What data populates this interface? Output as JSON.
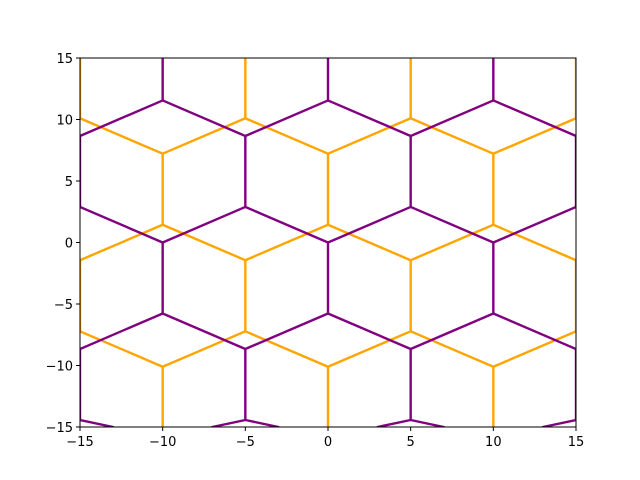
{
  "chart_data": {
    "type": "line",
    "title": "",
    "xlabel": "",
    "ylabel": "",
    "xlim": [
      -15,
      15
    ],
    "ylim": [
      -15,
      15
    ],
    "grid": false,
    "legend": "none",
    "x_ticks": [
      -15,
      -10,
      -5,
      0,
      5,
      10,
      15
    ],
    "y_ticks": [
      -15,
      -10,
      -5,
      0,
      5,
      10,
      15
    ],
    "x_tick_labels": [
      "−15",
      "−10",
      "−5",
      "0",
      "5",
      "10",
      "15"
    ],
    "y_tick_labels": [
      "−15",
      "−10",
      "−5",
      "0",
      "5",
      "10",
      "15"
    ],
    "series": [
      {
        "color": "#ffa500",
        "segments": [
          [
            [
              -15,
              -1.44
            ],
            [
              -10,
              1.44
            ]
          ],
          [
            [
              -10,
              1.44
            ],
            [
              -5,
              -1.44
            ]
          ],
          [
            [
              -5,
              -1.44
            ],
            [
              0,
              1.44
            ]
          ],
          [
            [
              0,
              1.44
            ],
            [
              5,
              -1.44
            ]
          ],
          [
            [
              5,
              -1.44
            ],
            [
              10,
              1.44
            ]
          ],
          [
            [
              10,
              1.44
            ],
            [
              15,
              -1.44
            ]
          ],
          [
            [
              -15,
              10.1
            ],
            [
              -10,
              7.22
            ]
          ],
          [
            [
              -10,
              7.22
            ],
            [
              -5,
              10.1
            ]
          ],
          [
            [
              -5,
              10.1
            ],
            [
              0,
              7.22
            ]
          ],
          [
            [
              0,
              7.22
            ],
            [
              5,
              10.1
            ]
          ],
          [
            [
              5,
              10.1
            ],
            [
              10,
              7.22
            ]
          ],
          [
            [
              10,
              7.22
            ],
            [
              15,
              10.1
            ]
          ],
          [
            [
              -15,
              -7.22
            ],
            [
              -10,
              -10.1
            ]
          ],
          [
            [
              -10,
              -10.1
            ],
            [
              -5,
              -7.22
            ]
          ],
          [
            [
              -5,
              -7.22
            ],
            [
              0,
              -10.1
            ]
          ],
          [
            [
              0,
              -10.1
            ],
            [
              5,
              -7.22
            ]
          ],
          [
            [
              5,
              -7.22
            ],
            [
              10,
              -10.1
            ]
          ],
          [
            [
              10,
              -10.1
            ],
            [
              15,
              -7.22
            ]
          ],
          [
            [
              -10,
              1.44
            ],
            [
              -10,
              7.22
            ]
          ],
          [
            [
              0,
              1.44
            ],
            [
              0,
              7.22
            ]
          ],
          [
            [
              10,
              1.44
            ],
            [
              10,
              7.22
            ]
          ],
          [
            [
              -5,
              -1.44
            ],
            [
              -5,
              -7.22
            ]
          ],
          [
            [
              5,
              -1.44
            ],
            [
              5,
              -7.22
            ]
          ],
          [
            [
              -15,
              -1.44
            ],
            [
              -15,
              -7.22
            ]
          ],
          [
            [
              15,
              -1.44
            ],
            [
              15,
              -7.22
            ]
          ],
          [
            [
              -5,
              10.1
            ],
            [
              -5,
              15
            ]
          ],
          [
            [
              5,
              10.1
            ],
            [
              5,
              15
            ]
          ],
          [
            [
              -15,
              10.1
            ],
            [
              -15,
              15
            ]
          ],
          [
            [
              15,
              10.1
            ],
            [
              15,
              15
            ]
          ],
          [
            [
              -10,
              -10.1
            ],
            [
              -10,
              -15
            ]
          ],
          [
            [
              0,
              -10.1
            ],
            [
              0,
              -15
            ]
          ],
          [
            [
              10,
              -10.1
            ],
            [
              10,
              -15
            ]
          ]
        ]
      },
      {
        "color": "#800080",
        "segments": [
          [
            [
              -15,
              2.89
            ],
            [
              -10,
              0
            ]
          ],
          [
            [
              -10,
              0
            ],
            [
              -5,
              2.89
            ]
          ],
          [
            [
              -5,
              2.89
            ],
            [
              0,
              0
            ]
          ],
          [
            [
              0,
              0
            ],
            [
              5,
              2.89
            ]
          ],
          [
            [
              5,
              2.89
            ],
            [
              10,
              0
            ]
          ],
          [
            [
              10,
              0
            ],
            [
              15,
              2.89
            ]
          ],
          [
            [
              -15,
              8.66
            ],
            [
              -10,
              11.55
            ]
          ],
          [
            [
              -10,
              11.55
            ],
            [
              -5,
              8.66
            ]
          ],
          [
            [
              -5,
              8.66
            ],
            [
              0,
              11.55
            ]
          ],
          [
            [
              0,
              11.55
            ],
            [
              5,
              8.66
            ]
          ],
          [
            [
              5,
              8.66
            ],
            [
              10,
              11.55
            ]
          ],
          [
            [
              10,
              11.55
            ],
            [
              15,
              8.66
            ]
          ],
          [
            [
              -15,
              -8.66
            ],
            [
              -10,
              -5.77
            ]
          ],
          [
            [
              -10,
              -5.77
            ],
            [
              -5,
              -8.66
            ]
          ],
          [
            [
              -5,
              -8.66
            ],
            [
              0,
              -5.77
            ]
          ],
          [
            [
              0,
              -5.77
            ],
            [
              5,
              -8.66
            ]
          ],
          [
            [
              5,
              -8.66
            ],
            [
              10,
              -5.77
            ]
          ],
          [
            [
              10,
              -5.77
            ],
            [
              15,
              -8.66
            ]
          ],
          [
            [
              -15,
              -14.43
            ],
            [
              -13,
              -15
            ]
          ],
          [
            [
              -7,
              -15
            ],
            [
              -5,
              -14.43
            ]
          ],
          [
            [
              -5,
              -14.43
            ],
            [
              -3,
              -15
            ]
          ],
          [
            [
              3,
              -15
            ],
            [
              5,
              -14.43
            ]
          ],
          [
            [
              5,
              -14.43
            ],
            [
              7,
              -15
            ]
          ],
          [
            [
              13,
              -15
            ],
            [
              15,
              -14.43
            ]
          ],
          [
            [
              -10,
              0
            ],
            [
              -10,
              -5.77
            ]
          ],
          [
            [
              0,
              0
            ],
            [
              0,
              -5.77
            ]
          ],
          [
            [
              10,
              0
            ],
            [
              10,
              -5.77
            ]
          ],
          [
            [
              -5,
              2.89
            ],
            [
              -5,
              8.66
            ]
          ],
          [
            [
              5,
              2.89
            ],
            [
              5,
              8.66
            ]
          ],
          [
            [
              -15,
              2.89
            ],
            [
              -15,
              8.66
            ]
          ],
          [
            [
              15,
              2.89
            ],
            [
              15,
              8.66
            ]
          ],
          [
            [
              -10,
              11.55
            ],
            [
              -10,
              15
            ]
          ],
          [
            [
              0,
              11.55
            ],
            [
              0,
              15
            ]
          ],
          [
            [
              10,
              11.55
            ],
            [
              10,
              15
            ]
          ],
          [
            [
              -5,
              -8.66
            ],
            [
              -5,
              -14.43
            ]
          ],
          [
            [
              5,
              -8.66
            ],
            [
              5,
              -14.43
            ]
          ],
          [
            [
              -15,
              -8.66
            ],
            [
              -15,
              -14.43
            ]
          ],
          [
            [
              15,
              -8.66
            ],
            [
              15,
              -14.43
            ]
          ]
        ]
      }
    ]
  }
}
